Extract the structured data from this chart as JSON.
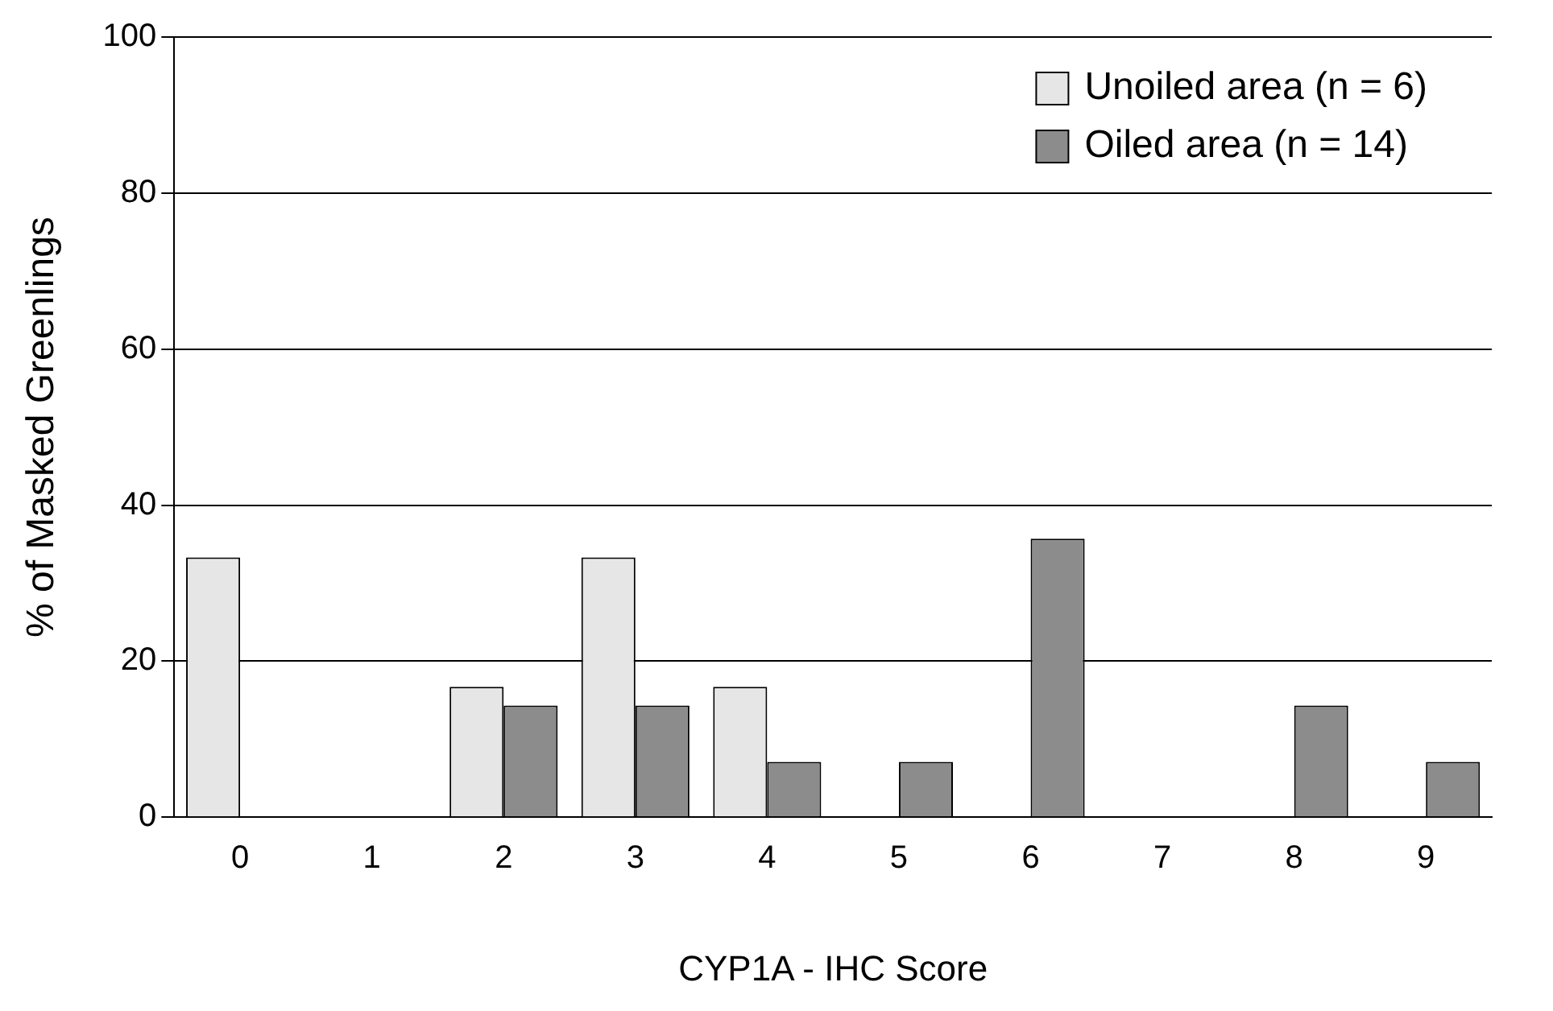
{
  "chart_data": {
    "type": "bar",
    "xlabel": "CYP1A - IHC Score",
    "ylabel": "% of Masked Greenlings",
    "categories": [
      "0",
      "1",
      "2",
      "3",
      "4",
      "5",
      "6",
      "7",
      "8",
      "9"
    ],
    "series": [
      {
        "name": "Unoiled area (n = 6)",
        "color": "#e6e6e6",
        "values": [
          33.3,
          0,
          16.7,
          33.3,
          16.7,
          0,
          0,
          0,
          0,
          0
        ]
      },
      {
        "name": "Oiled area (n = 14)",
        "color": "#8c8c8c",
        "values": [
          0,
          0,
          14.3,
          14.3,
          7.1,
          7.1,
          35.7,
          0,
          14.3,
          7.1
        ]
      }
    ],
    "ylim": [
      0,
      100
    ],
    "yticks": [
      0,
      20,
      40,
      60,
      80,
      100
    ],
    "grid": "y",
    "legend": "top right"
  }
}
